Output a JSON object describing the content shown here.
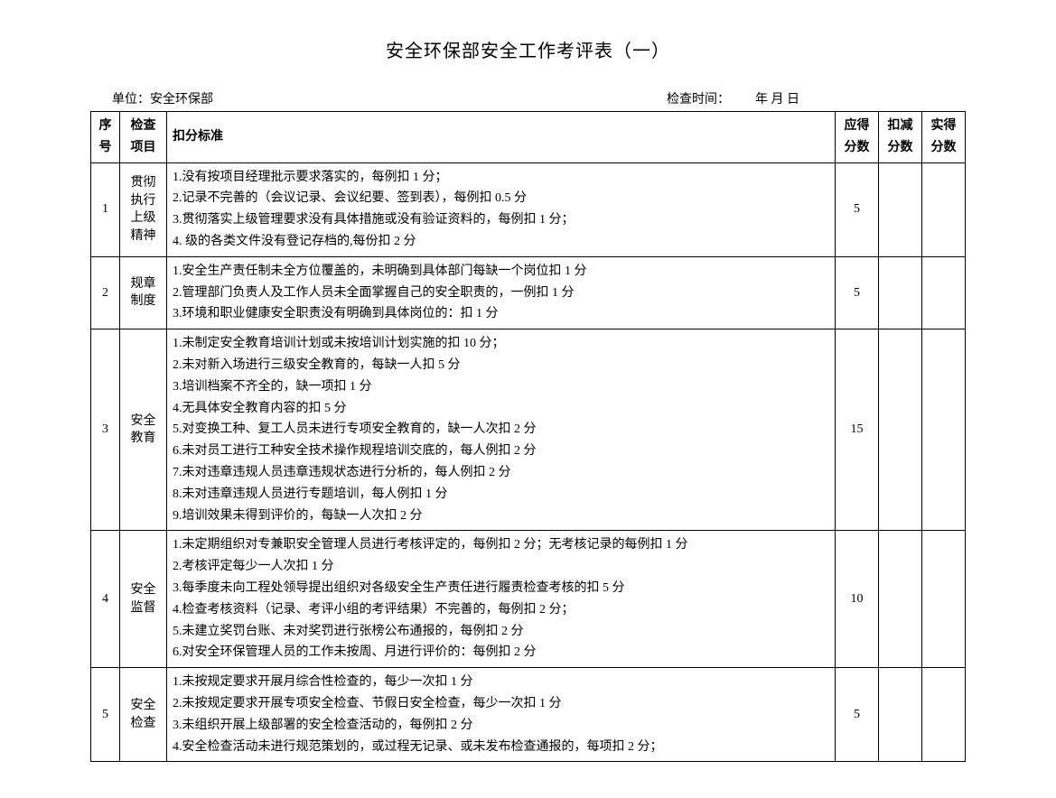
{
  "title": "安全环保部安全工作考评表（一）",
  "header": {
    "unit_label": "单位：",
    "unit_value": "安全环保部",
    "date_label": "检查时间：",
    "date_value": "年        月        日"
  },
  "columns": {
    "seq": "序号",
    "item": "检查项目",
    "criteria": "扣分标准",
    "score": "应得分数",
    "deduct": "扣减分数",
    "actual": "实得分数"
  },
  "rows": [
    {
      "seq": "1",
      "item": "贯彻执行上级精神",
      "criteria": [
        "1.没有按项目经理批示要求落实的，每例扣 1 分；",
        "2.记录不完善的（会议记录、会议纪要、签到表），每例扣 0.5 分",
        "3.贯彻落实上级管理要求没有具体措施或没有验证资料的，每例扣 1 分；",
        "4.  级的各类文件没有登记存档的,每份扣 2 分"
      ],
      "score": "5",
      "deduct": "",
      "actual": ""
    },
    {
      "seq": "2",
      "item": "规章制度",
      "criteria": [
        "1.安全生产责任制未全方位覆盖的，未明确到具体部门每缺一个岗位扣 1 分",
        "2.管理部门负责人及工作人员未全面掌握自己的安全职责的，一例扣 1 分",
        "3.环境和职业健康安全职责没有明确到具体岗位的：扣 1 分"
      ],
      "score": "5",
      "deduct": "",
      "actual": ""
    },
    {
      "seq": "3",
      "item": "安全教育",
      "criteria": [
        "1.未制定安全教育培训计划或未按培训计划实施的扣 10 分；",
        "2.未对新入场进行三级安全教育的，每缺一人扣 5 分",
        "3.培训档案不齐全的，缺一项扣 1 分",
        "4.无具体安全教育内容的扣 5 分",
        "5.对变换工种、复工人员未进行专项安全教育的，缺一人次扣 2 分",
        "6.未对员工进行工种安全技术操作规程培训交底的，每人例扣 2 分",
        "7.未对违章违规人员违章违规状态进行分析的，每人例扣 2 分",
        "8.未对违章违规人员进行专题培训，每人例扣 1 分",
        "9.培训效果未得到评价的，每缺一人次扣 2 分"
      ],
      "score": "15",
      "deduct": "",
      "actual": ""
    },
    {
      "seq": "4",
      "item": "安全  监督",
      "criteria": [
        "1.未定期组织对专兼职安全管理人员进行考核评定的，每例扣 2 分；无考核记录的每例扣 1 分",
        "2.考核评定每少一人次扣 1 分",
        "3.每季度未向工程处领导提出组织对各级安全生产责任进行履责检查考核的扣 5 分",
        "4.检查考核资料（记录、考评小组的考评结果）不完善的，每例扣 2 分；",
        "5.未建立奖罚台账、未对奖罚进行张榜公布通报的，每例扣 2 分",
        "6.对安全环保管理人员的工作未按周、月进行评价的：每例扣 2 分"
      ],
      "score": "10",
      "deduct": "",
      "actual": ""
    },
    {
      "seq": "5",
      "item": "安全检查",
      "criteria": [
        "1.未按规定要求开展月综合性检查的，每少一次扣 1 分",
        "2.未按规定要求开展专项安全检查、节假日安全检查，每少一次扣 1 分",
        "3.未组织开展上级部署的安全检查活动的，每例扣 2 分",
        "4.安全检查活动未进行规范策划的，或过程无记录、或未发布检查通报的，每项扣 2 分；"
      ],
      "score": "5",
      "deduct": "",
      "actual": ""
    }
  ]
}
